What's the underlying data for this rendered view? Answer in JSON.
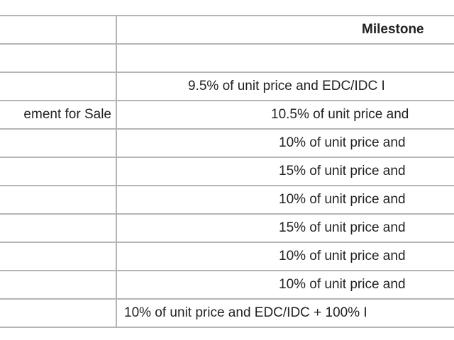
{
  "table": {
    "header": {
      "milestone": "Milestone"
    },
    "rows": [
      {},
      {
        "milestone": "9.5% of unit price and EDC/IDC I"
      },
      {
        "label": "ement for Sale",
        "milestone": "10.5% of unit price and"
      },
      {
        "milestone": "10% of unit price and"
      },
      {
        "milestone": "15% of unit price and"
      },
      {
        "milestone": "10% of unit price and"
      },
      {
        "milestone": "15% of unit price and"
      },
      {
        "milestone": "10% of unit price and"
      },
      {
        "milestone": "10% of unit price and"
      },
      {
        "milestone": "10% of unit price and EDC/IDC + 100% I"
      }
    ]
  }
}
